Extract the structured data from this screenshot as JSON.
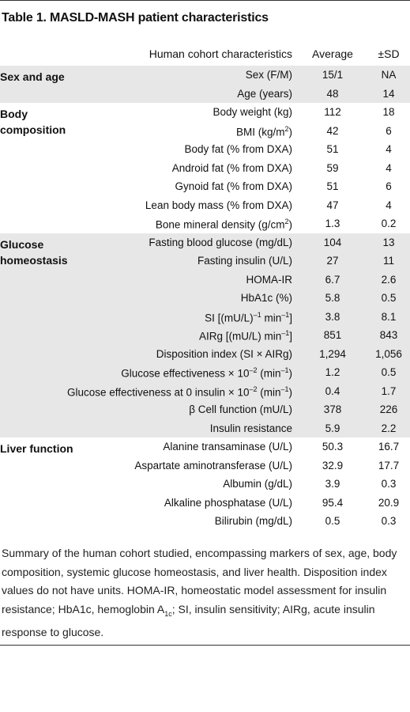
{
  "title": "Table 1. MASLD-MASH patient characteristics",
  "header": {
    "characteristics": "Human cohort characteristics",
    "average": "Average",
    "sd": "±SD"
  },
  "groups": [
    {
      "name": "Sex and age",
      "shaded": true,
      "rows": [
        {
          "label": "Sex (F/M)",
          "average": "15/1",
          "sd": "NA"
        },
        {
          "label": "Age (years)",
          "average": "48",
          "sd": "14"
        }
      ]
    },
    {
      "name": "Body composition",
      "shaded": false,
      "rows": [
        {
          "label": "Body weight (kg)",
          "average": "112",
          "sd": "18"
        },
        {
          "label": "BMI (kg/m",
          "label_sup": "2",
          "label_tail": ")",
          "average": "42",
          "sd": "6"
        },
        {
          "label": "Body fat (% from DXA)",
          "average": "51",
          "sd": "4"
        },
        {
          "label": "Android fat (% from DXA)",
          "average": "59",
          "sd": "4"
        },
        {
          "label": "Gynoid fat (% from DXA)",
          "average": "51",
          "sd": "6"
        },
        {
          "label": "Lean body mass (% from DXA)",
          "average": "47",
          "sd": "4"
        },
        {
          "label": "Bone mineral density (g/cm",
          "label_sup": "2",
          "label_tail": ")",
          "average": "1.3",
          "sd": "0.2"
        }
      ]
    },
    {
      "name": "Glucose homeostasis",
      "shaded": true,
      "rows": [
        {
          "label": "Fasting blood glucose (mg/dL)",
          "average": "104",
          "sd": "13"
        },
        {
          "label": "Fasting insulin (U/L)",
          "average": "27",
          "sd": "11"
        },
        {
          "label": "HOMA-IR",
          "average": "6.7",
          "sd": "2.6"
        },
        {
          "label": "HbA1c (%)",
          "average": "5.8",
          "sd": "0.5"
        },
        {
          "label": "SI [(mU/L)",
          "label_sup": "–1",
          "label_tail": " min",
          "label_sup2": "–1",
          "label_tail2": "]",
          "average": "3.8",
          "sd": "8.1"
        },
        {
          "label": "AIRg [(mU/L) min",
          "label_sup": "–1",
          "label_tail": "]",
          "average": "851",
          "sd": "843"
        },
        {
          "label": "Disposition index (SI × AIRg)",
          "average": "1,294",
          "sd": "1,056"
        },
        {
          "label": "Glucose effectiveness × 10",
          "label_sup": "–2",
          "label_tail": " (min",
          "label_sup2": "–1",
          "label_tail2": ")",
          "average": "1.2",
          "sd": "0.5"
        },
        {
          "label": "Glucose effectiveness at 0 insulin × 10",
          "label_sup": "–2",
          "label_tail": " (min",
          "label_sup2": "–1",
          "label_tail2": ")",
          "average": "0.4",
          "sd": "1.7"
        },
        {
          "label": "β Cell function (mU/L)",
          "average": "378",
          "sd": "226"
        },
        {
          "label": "Insulin resistance",
          "average": "5.9",
          "sd": "2.2"
        }
      ]
    },
    {
      "name": "Liver function",
      "shaded": false,
      "rows": [
        {
          "label": "Alanine transaminase (U/L)",
          "average": "50.3",
          "sd": "16.7"
        },
        {
          "label": "Aspartate aminotransferase (U/L)",
          "average": "32.9",
          "sd": "17.7"
        },
        {
          "label": "Albumin (g/dL)",
          "average": "3.9",
          "sd": "0.3"
        },
        {
          "label": "Alkaline phosphatase (U/L)",
          "average": "95.4",
          "sd": "20.9"
        },
        {
          "label": "Bilirubin (mg/dL)",
          "average": "0.5",
          "sd": "0.3"
        }
      ]
    }
  ],
  "caption": {
    "part1": "Summary of the human cohort studied, encompassing markers of sex, age, body composition, systemic glucose homeostasis, and liver health. Disposition index values do not have units. HOMA-IR, homeostatic model assessment for insulin resistance; HbA1c, hemoglobin A",
    "part1_sub": "1c",
    "part2": "; SI, insulin sensitivity; AIRg, acute insulin response to glucose."
  }
}
